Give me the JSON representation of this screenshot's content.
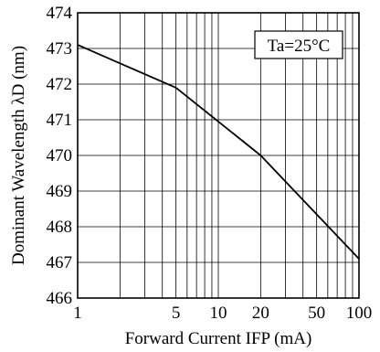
{
  "chart_data": {
    "type": "line",
    "xlabel": "Forward Current IFP (mA)",
    "ylabel": "Dominant Wavelength λD (nm)",
    "xscale": "log",
    "xlim": [
      1,
      100
    ],
    "ylim": [
      466,
      474
    ],
    "x_tick_labels": [
      "1",
      "5",
      "10",
      "20",
      "50",
      "100"
    ],
    "x_tick_values": [
      1,
      5,
      10,
      20,
      50,
      100
    ],
    "y_tick_labels": [
      "466",
      "467",
      "468",
      "469",
      "470",
      "471",
      "472",
      "473",
      "474"
    ],
    "y_tick_values": [
      466,
      467,
      468,
      469,
      470,
      471,
      472,
      473,
      474
    ],
    "grid": true,
    "annotation": "Ta=25°C",
    "series": [
      {
        "x": [
          1,
          5,
          20,
          100
        ],
        "y": [
          473.1,
          471.9,
          470.0,
          467.1
        ]
      }
    ],
    "colors": {
      "line": "#000000",
      "grid": "#000000",
      "background": "#ffffff"
    }
  }
}
